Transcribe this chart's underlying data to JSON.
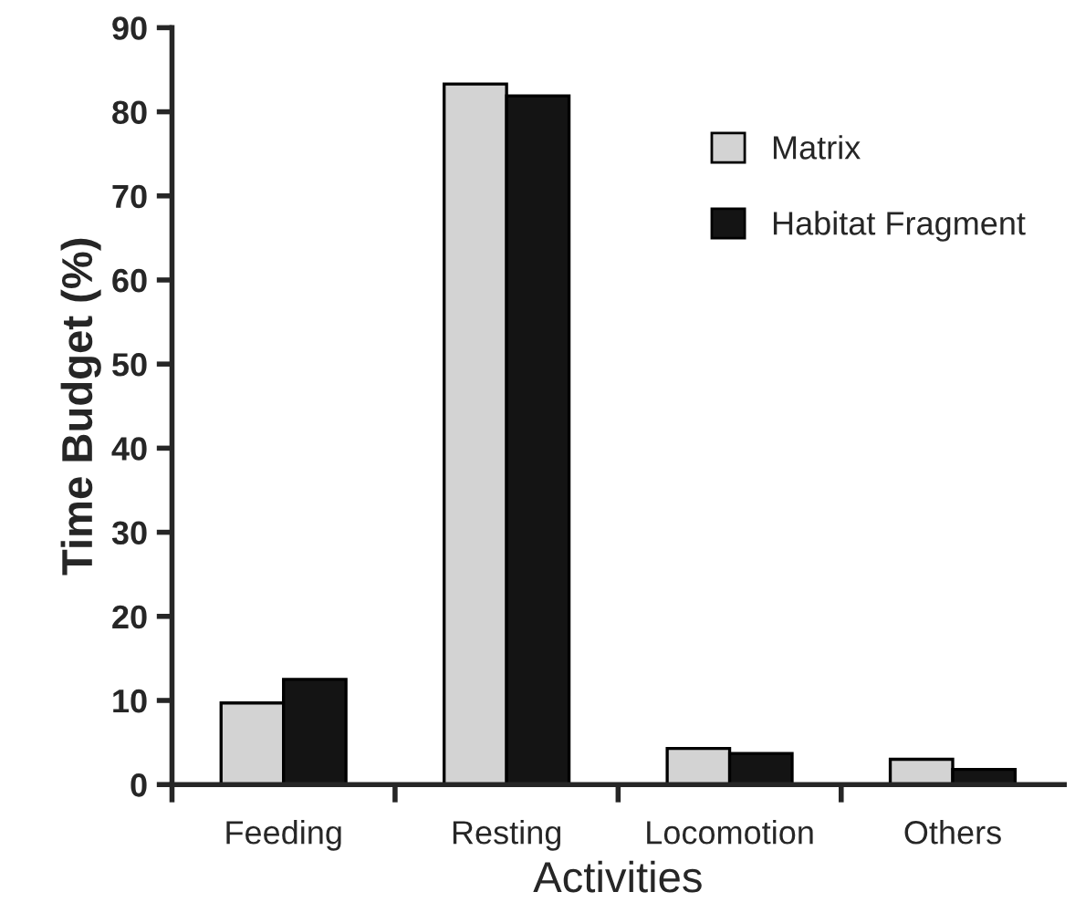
{
  "chart_data": {
    "type": "bar",
    "xlabel": "Activities",
    "ylabel": "Time Budget (%)",
    "categories": [
      "Feeding",
      "Resting",
      "Locomotion",
      "Others"
    ],
    "series": [
      {
        "name": "Matrix",
        "color": "#d3d3d3",
        "values": [
          9.7,
          83.3,
          4.3,
          3.0
        ]
      },
      {
        "name": "Habitat Fragment",
        "color": "#141414",
        "values": [
          12.5,
          81.9,
          3.7,
          1.8
        ]
      }
    ],
    "ylim": [
      0,
      90
    ],
    "yticks": [
      0,
      10,
      20,
      30,
      40,
      50,
      60,
      70,
      80,
      90
    ],
    "grid": false,
    "legend": "top right"
  }
}
